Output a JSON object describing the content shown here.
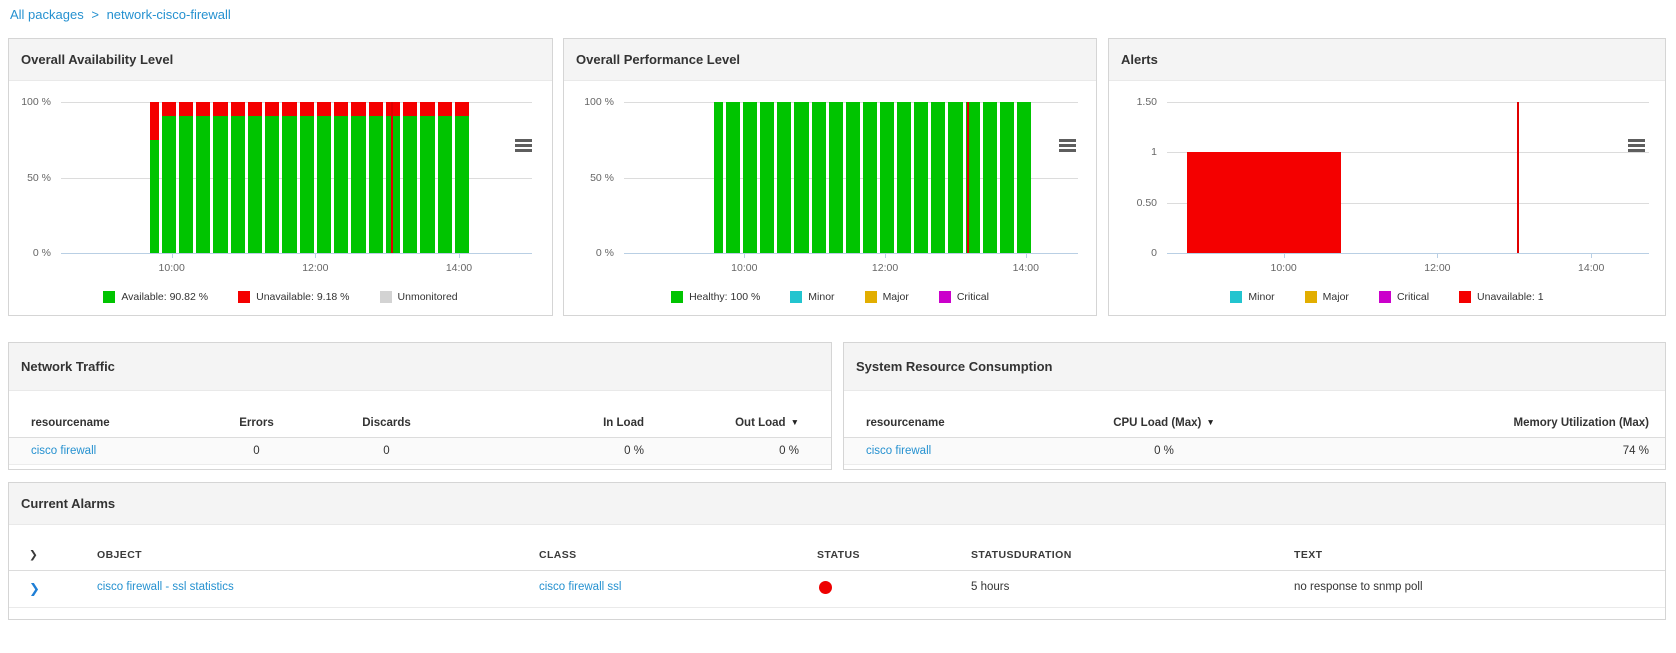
{
  "breadcrumb": {
    "root": "All packages",
    "separator": ">",
    "current": "network-cisco-firewall"
  },
  "icons": {
    "chevron": "❯",
    "sort_desc": "▼"
  },
  "colors": {
    "green": "#00c400",
    "red": "#f40000",
    "cyan": "#22c4cf",
    "gold": "#e2ae00",
    "magenta": "#cb00cb",
    "gray": "#d3d3d3",
    "link": "#2591d0",
    "now_line": "#e00000",
    "status_dot": "#ee0000"
  },
  "chart_data": [
    {
      "id": "availability",
      "type": "bar",
      "title": "Overall Availability Level",
      "stacked": true,
      "ylim": [
        0,
        100
      ],
      "yticks": [
        {
          "label": "100 %",
          "value": 100
        },
        {
          "label": "50 %",
          "value": 50
        },
        {
          "label": "0 %",
          "value": 0
        }
      ],
      "xticks": [
        {
          "label": "10:00",
          "pct": 23.5
        },
        {
          "label": "12:00",
          "pct": 54
        },
        {
          "label": "14:00",
          "pct": 84.5
        }
      ],
      "bar_area_pct": [
        18.5,
        87
      ],
      "first_bar_narrow": true,
      "series": [
        {
          "name": "Available",
          "color_key": "green",
          "values": [
            75,
            91,
            91,
            91,
            91,
            91,
            91,
            91,
            91,
            91,
            91,
            91,
            91,
            91,
            91,
            91,
            91,
            91,
            91
          ]
        },
        {
          "name": "Unavailable",
          "color_key": "red",
          "values": [
            25,
            9,
            9,
            9,
            9,
            9,
            9,
            9,
            9,
            9,
            9,
            9,
            9,
            9,
            9,
            9,
            9,
            9,
            9
          ]
        }
      ],
      "now_line_pct": 70,
      "legend": [
        {
          "label": "Available: 90.82 %",
          "color_key": "green"
        },
        {
          "label": "Unavailable: 9.18 %",
          "color_key": "red"
        },
        {
          "label": "Unmonitored",
          "color_key": "gray"
        }
      ]
    },
    {
      "id": "performance",
      "type": "bar",
      "title": "Overall Performance Level",
      "stacked": true,
      "ylim": [
        0,
        100
      ],
      "yticks": [
        {
          "label": "100 %",
          "value": 100
        },
        {
          "label": "50 %",
          "value": 50
        },
        {
          "label": "0 %",
          "value": 0
        }
      ],
      "xticks": [
        {
          "label": "10:00",
          "pct": 26.5
        },
        {
          "label": "12:00",
          "pct": 57.5
        },
        {
          "label": "14:00",
          "pct": 88.5
        }
      ],
      "bar_area_pct": [
        19.5,
        90
      ],
      "first_bar_narrow": true,
      "series": [
        {
          "name": "Healthy",
          "color_key": "green",
          "values": [
            100,
            100,
            100,
            100,
            100,
            100,
            100,
            100,
            100,
            100,
            100,
            100,
            100,
            100,
            100,
            100,
            100,
            100,
            100
          ]
        }
      ],
      "now_line_pct": 75.5,
      "legend": [
        {
          "label": "Healthy: 100 %",
          "color_key": "green"
        },
        {
          "label": "Minor",
          "color_key": "cyan"
        },
        {
          "label": "Major",
          "color_key": "gold"
        },
        {
          "label": "Critical",
          "color_key": "magenta"
        }
      ]
    },
    {
      "id": "alerts",
      "type": "area-block",
      "title": "Alerts",
      "ylim": [
        0,
        1.5
      ],
      "yticks": [
        {
          "label": "1.50",
          "value": 1.5
        },
        {
          "label": "1",
          "value": 1
        },
        {
          "label": "0.50",
          "value": 0.5
        },
        {
          "label": "0",
          "value": 0
        }
      ],
      "xticks": [
        {
          "label": "10:00",
          "pct": 24.2
        },
        {
          "label": "12:00",
          "pct": 56.1
        },
        {
          "label": "14:00",
          "pct": 88
        }
      ],
      "block": {
        "name": "Unavailable",
        "value": 1,
        "x_start_pct": 4.1,
        "x_end_pct": 36.2,
        "color_key": "red"
      },
      "now_line_pct": 72.7,
      "legend": [
        {
          "label": "Minor",
          "color_key": "cyan"
        },
        {
          "label": "Major",
          "color_key": "gold"
        },
        {
          "label": "Critical",
          "color_key": "magenta"
        },
        {
          "label": "Unavailable: 1",
          "color_key": "red"
        }
      ]
    }
  ],
  "tables": {
    "network_traffic": {
      "title": "Network Traffic",
      "columns": [
        "resourcename",
        "Errors",
        "Discards",
        "In Load",
        "Out Load"
      ],
      "sorted_column": "Out Load",
      "sort_indicator": "▼",
      "rows": [
        {
          "cells": [
            "cisco firewall",
            "0",
            "0",
            "0 %",
            "0 %"
          ]
        }
      ]
    },
    "system_resource_consumption": {
      "title": "System Resource Consumption",
      "columns": [
        "resourcename",
        "CPU Load (Max)",
        "Memory Utilization (Max)"
      ],
      "sorted_column": "CPU Load (Max)",
      "sort_indicator": "▼",
      "rows": [
        {
          "cells": [
            "cisco firewall",
            "0 %",
            "74 %"
          ]
        }
      ]
    },
    "current_alarms": {
      "title": "Current Alarms",
      "columns": [
        "OBJECT",
        "CLASS",
        "STATUS",
        "STATUSDURATION",
        "TEXT"
      ],
      "rows": [
        {
          "object": "cisco firewall - ssl statistics",
          "class": "cisco firewall ssl",
          "status": "critical",
          "status_duration": "5 hours",
          "text": "no response to snmp poll"
        }
      ]
    }
  }
}
